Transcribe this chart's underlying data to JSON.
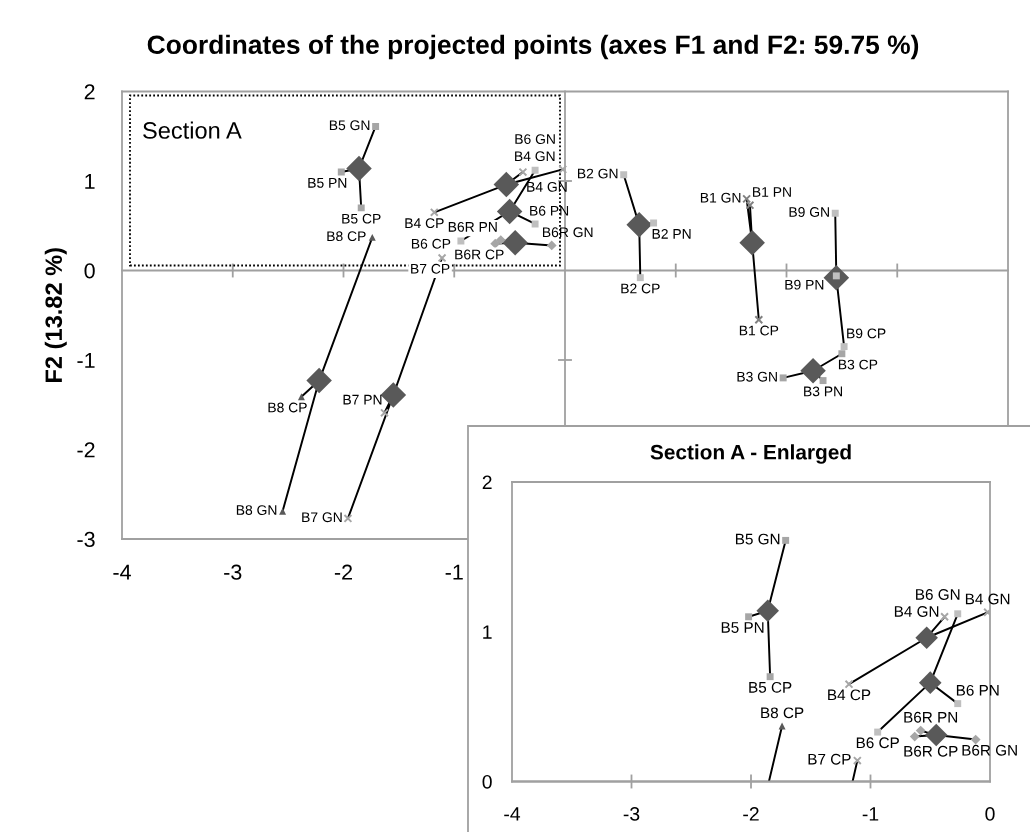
{
  "chart_data": [
    {
      "type": "scatter",
      "title": "Coordinates of the projected points (axes F1 and F2: 59.75 %)",
      "ylabel": "F2 (13.82 %)",
      "xlim": [
        -4,
        4
      ],
      "ylim": [
        -3,
        2
      ],
      "xticks": [
        -4,
        -3,
        -2,
        -1,
        {
          "value": 1,
          "label": null
        },
        {
          "value": 2,
          "label": null
        },
        {
          "value": 3,
          "label": null
        }
      ],
      "yticks": [
        -3,
        -2,
        -1,
        0,
        1,
        2
      ],
      "annotations": [
        "Section A"
      ],
      "series": [
        {
          "type": "line",
          "color": "#000000",
          "x": [
            -1.84,
            -1.86,
            -2.02,
            -1.86,
            -1.71
          ],
          "values": [
            0.7,
            1.14,
            1.1,
            1.14,
            1.61
          ]
        },
        {
          "type": "line",
          "color": "#000000",
          "x": [
            -1.18,
            -0.53,
            -0.38,
            -0.53,
            -0.02
          ],
          "values": [
            0.65,
            0.96,
            1.1,
            0.96,
            1.13
          ]
        },
        {
          "type": "line",
          "color": "#000000",
          "x": [
            -0.94,
            -0.5,
            -0.27,
            -0.5,
            -0.27
          ],
          "values": [
            0.33,
            0.66,
            0.52,
            0.66,
            1.12
          ]
        },
        {
          "type": "line",
          "color": "#000000",
          "x": [
            -0.63,
            -0.45,
            -0.58,
            -0.45,
            -0.12
          ],
          "values": [
            0.3,
            0.31,
            0.34,
            0.31,
            0.28
          ]
        },
        {
          "type": "line",
          "color": "#000000",
          "x": [
            -1.11,
            -1.55,
            -1.63,
            -1.55,
            -1.96
          ],
          "values": [
            0.14,
            -1.39,
            -1.59,
            -1.39,
            -2.77
          ]
        },
        {
          "type": "line",
          "color": "#000000",
          "x": [
            -1.74,
            -2.22,
            -2.38,
            -2.22,
            -2.55
          ],
          "values": [
            0.37,
            -1.23,
            -1.41,
            -1.23,
            -2.69
          ]
        },
        {
          "type": "line",
          "color": "#000000",
          "x": [
            0.68,
            0.67,
            0.8,
            0.67,
            0.53
          ],
          "values": [
            -0.08,
            0.51,
            0.53,
            0.51,
            1.07
          ]
        },
        {
          "type": "line",
          "color": "#000000",
          "x": [
            1.75,
            1.69,
            1.67,
            1.69,
            1.64
          ],
          "values": [
            -0.55,
            0.31,
            0.73,
            0.31,
            0.8
          ]
        },
        {
          "type": "line",
          "color": "#000000",
          "x": [
            2.52,
            2.45,
            2.45,
            2.45,
            2.44
          ],
          "values": [
            -0.85,
            -0.08,
            -0.06,
            -0.08,
            0.64
          ]
        },
        {
          "type": "line",
          "color": "#000000",
          "x": [
            2.5,
            2.24,
            2.33,
            2.24,
            1.97
          ],
          "values": [
            -0.93,
            -1.12,
            -1.23,
            -1.12,
            -1.2
          ]
        },
        {
          "type": "scatter",
          "color": "#a6a6a6",
          "marker": "square",
          "x": [
            -1.84,
            -2.02,
            -1.71
          ],
          "values": [
            0.7,
            1.1,
            1.61
          ],
          "value_labels": [
            "B5 CP",
            "B5 PN",
            "B5 GN"
          ]
        },
        {
          "type": "scatter",
          "color": "#a6a6a6",
          "marker": "cross",
          "x": [
            -1.18,
            -0.38,
            -0.02
          ],
          "values": [
            0.65,
            1.1,
            1.13
          ],
          "value_labels": [
            "B4 CP",
            "B4 GN",
            "B4 GN"
          ]
        },
        {
          "type": "scatter",
          "color": "#bfbfbf",
          "marker": "square",
          "x": [
            -0.94,
            -0.27,
            -0.27
          ],
          "values": [
            0.33,
            0.52,
            1.12
          ],
          "value_labels": [
            "B6 CP",
            "B6 PN",
            "B6 GN"
          ]
        },
        {
          "type": "scatter",
          "color": "#a6a6a6",
          "marker": "diamond",
          "x": [
            -0.63,
            -0.58,
            -0.12
          ],
          "values": [
            0.3,
            0.34,
            0.28
          ],
          "value_labels": [
            "B6R CP",
            "B6R PN",
            "B6R GN"
          ]
        },
        {
          "type": "scatter",
          "color": "#a6a6a6",
          "marker": "cross",
          "x": [
            -1.11,
            -1.63,
            -1.96
          ],
          "values": [
            0.14,
            -1.59,
            -2.77
          ],
          "value_labels": [
            "B7 CP",
            "B7 PN",
            "B7 GN"
          ]
        },
        {
          "type": "scatter",
          "color": "#595959",
          "marker": "triangle",
          "x": [
            -1.74,
            -2.38,
            -2.55
          ],
          "values": [
            0.37,
            -1.41,
            -2.69
          ],
          "value_labels": [
            "B8 CP",
            "B8 CP",
            "B8 GN"
          ]
        },
        {
          "type": "scatter",
          "color": "#bfbfbf",
          "marker": "square",
          "x": [
            0.68,
            0.8,
            0.53
          ],
          "values": [
            -0.08,
            0.53,
            1.07
          ],
          "value_labels": [
            "B2 CP",
            "B2 PN",
            "B2 GN"
          ]
        },
        {
          "type": "scatter",
          "color": "#808080",
          "marker": "cross",
          "x": [
            1.75,
            1.67,
            1.64
          ],
          "values": [
            -0.55,
            0.73,
            0.8
          ],
          "value_labels": [
            "B1 CP",
            "B1 PN",
            "B1 GN"
          ]
        },
        {
          "type": "scatter",
          "color": "#bfbfbf",
          "marker": "square",
          "x": [
            2.52,
            2.45,
            2.44
          ],
          "values": [
            -0.85,
            -0.06,
            0.64
          ],
          "value_labels": [
            "B9 CP",
            "B9 PN",
            "B9 GN"
          ]
        },
        {
          "type": "scatter",
          "color": "#a6a6a6",
          "marker": "square",
          "x": [
            2.5,
            2.33,
            1.97
          ],
          "values": [
            -0.93,
            -1.23,
            -1.2
          ],
          "value_labels": [
            "B3 CP",
            "B3 PN",
            "B3 GN"
          ]
        },
        {
          "type": "scatter",
          "color": "#595959",
          "marker": "diamond",
          "x": [
            -1.86,
            -0.53,
            -0.5,
            -0.45,
            -1.55,
            -2.22,
            0.67,
            1.69,
            2.45,
            2.24
          ],
          "values": [
            1.14,
            0.96,
            0.66,
            0.31,
            -1.39,
            -1.23,
            0.51,
            0.31,
            -0.08,
            -1.12
          ]
        }
      ]
    },
    {
      "type": "scatter",
      "title": "Section A - Enlarged",
      "xlim": [
        -4,
        0
      ],
      "ylim": [
        0,
        2
      ],
      "xticks": [
        -4,
        -3,
        -2,
        -1,
        0
      ],
      "yticks": [
        0,
        1,
        2
      ],
      "series": [
        {
          "type": "line",
          "color": "#000000",
          "x": [
            -1.84,
            -1.86,
            -2.02,
            -1.86,
            -1.71
          ],
          "values": [
            0.7,
            1.14,
            1.1,
            1.14,
            1.61
          ]
        },
        {
          "type": "line",
          "color": "#000000",
          "x": [
            -1.18,
            -0.53,
            -0.38,
            -0.53,
            -0.02
          ],
          "values": [
            0.65,
            0.96,
            1.1,
            0.96,
            1.13
          ]
        },
        {
          "type": "line",
          "color": "#000000",
          "x": [
            -0.94,
            -0.5,
            -0.27,
            -0.5,
            -0.27
          ],
          "values": [
            0.33,
            0.66,
            0.52,
            0.66,
            1.12
          ]
        },
        {
          "type": "line",
          "color": "#000000",
          "x": [
            -0.63,
            -0.45,
            -0.58,
            -0.45,
            -0.12
          ],
          "values": [
            0.3,
            0.31,
            0.34,
            0.31,
            0.28
          ]
        },
        {
          "type": "line",
          "color": "#000000",
          "x": [
            -1.74,
            -1.85
          ],
          "values": [
            0.37,
            0
          ]
        },
        {
          "type": "line",
          "color": "#000000",
          "x": [
            -1.11,
            -1.15
          ],
          "values": [
            0.14,
            0
          ]
        },
        {
          "type": "scatter",
          "color": "#a6a6a6",
          "marker": "square",
          "x": [
            -1.84,
            -2.02,
            -1.71
          ],
          "values": [
            0.7,
            1.1,
            1.61
          ],
          "value_labels": [
            "B5 CP",
            "B5 PN",
            "B5 GN"
          ]
        },
        {
          "type": "scatter",
          "color": "#a6a6a6",
          "marker": "cross",
          "x": [
            -1.18,
            -0.38,
            -0.02
          ],
          "values": [
            0.65,
            1.1,
            1.13
          ],
          "value_labels": [
            "B4 CP",
            "B4 GN",
            "B4 GN"
          ]
        },
        {
          "type": "scatter",
          "color": "#bfbfbf",
          "marker": "square",
          "x": [
            -0.94,
            -0.27,
            -0.27
          ],
          "values": [
            0.33,
            0.52,
            1.12
          ],
          "value_labels": [
            "B6 CP",
            "B6 PN",
            "B6 GN"
          ]
        },
        {
          "type": "scatter",
          "color": "#a6a6a6",
          "marker": "diamond",
          "x": [
            -0.63,
            -0.58,
            -0.12
          ],
          "values": [
            0.3,
            0.34,
            0.28
          ],
          "value_labels": [
            "B6R CP",
            "B6R PN",
            "B6R GN"
          ]
        },
        {
          "type": "scatter",
          "color": "#595959",
          "marker": "triangle",
          "x": [
            -1.74
          ],
          "values": [
            0.37
          ],
          "value_labels": [
            "B8 CP"
          ]
        },
        {
          "type": "scatter",
          "color": "#a6a6a6",
          "marker": "cross",
          "x": [
            -1.11
          ],
          "values": [
            0.14
          ],
          "value_labels": [
            "B7 CP"
          ]
        },
        {
          "type": "scatter",
          "color": "#595959",
          "marker": "diamond",
          "x": [
            -1.86,
            -0.53,
            -0.5,
            -0.45
          ],
          "values": [
            1.14,
            0.96,
            0.66,
            0.31
          ]
        }
      ]
    }
  ]
}
